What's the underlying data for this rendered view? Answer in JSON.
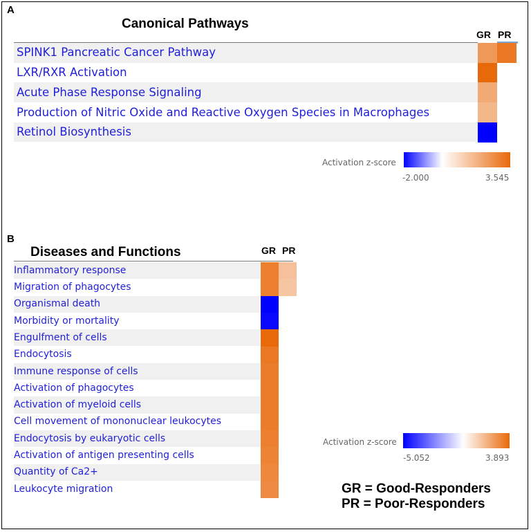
{
  "colors": {
    "label_text": "#1f1fd8",
    "row_shade": "#f0f0f0",
    "negative_end": "#0000ff",
    "neutral": "#ffffff",
    "positive_end": "#e8690a"
  },
  "chart_data": [
    {
      "type": "heatmap",
      "panel": "A",
      "title": "Canonical Pathways",
      "columns": [
        "GR",
        "PR"
      ],
      "rows": [
        {
          "label": "SPINK1 Pancreatic Cancer Pathway",
          "values": [
            2.4,
            3.2
          ]
        },
        {
          "label": "LXR/RXR Activation",
          "values": [
            3.545,
            null
          ]
        },
        {
          "label": "Acute Phase Response Signaling",
          "values": [
            2.0,
            null
          ]
        },
        {
          "label": "Production of Nitric Oxide and Reactive Oxygen Species in Macrophages",
          "values": [
            1.7,
            null
          ]
        },
        {
          "label": "Retinol Biosynthesis",
          "values": [
            -2.0,
            null
          ]
        }
      ],
      "legend": {
        "title": "Activation z-score",
        "min": -2.0,
        "max": 3.545,
        "min_label": "-2.000",
        "max_label": "3.545"
      }
    },
    {
      "type": "heatmap",
      "panel": "B",
      "title": "Diseases and Functions",
      "columns": [
        "GR",
        "PR"
      ],
      "rows": [
        {
          "label": "Inflammatory response",
          "values": [
            3.3,
            1.6
          ]
        },
        {
          "label": "Migration of phagocytes",
          "values": [
            3.3,
            1.5
          ]
        },
        {
          "label": "Organismal death",
          "values": [
            -5.052,
            null
          ]
        },
        {
          "label": "Morbidity or mortality",
          "values": [
            -4.9,
            null
          ]
        },
        {
          "label": "Engulfment of cells",
          "values": [
            3.893,
            null
          ]
        },
        {
          "label": "Endocytosis",
          "values": [
            3.5,
            null
          ]
        },
        {
          "label": "Immune response of cells",
          "values": [
            3.4,
            null
          ]
        },
        {
          "label": "Activation of phagocytes",
          "values": [
            3.4,
            null
          ]
        },
        {
          "label": "Activation of myeloid cells",
          "values": [
            3.4,
            null
          ]
        },
        {
          "label": "Cell movement of mononuclear leukocytes",
          "values": [
            3.4,
            null
          ]
        },
        {
          "label": "Endocytosis by eukaryotic cells",
          "values": [
            3.3,
            null
          ]
        },
        {
          "label": "Activation of antigen presenting cells",
          "values": [
            3.2,
            null
          ]
        },
        {
          "label": "Quantity of Ca2+",
          "values": [
            3.1,
            null
          ]
        },
        {
          "label": "Leukocyte migration",
          "values": [
            3.0,
            null
          ]
        }
      ],
      "legend": {
        "title": "Activation z-score",
        "min": -5.052,
        "max": 3.893,
        "min_label": "-5.052",
        "max_label": "3.893"
      }
    }
  ],
  "footnote": {
    "line1": "GR = Good-Responders",
    "line2": "PR = Poor-Responders"
  }
}
